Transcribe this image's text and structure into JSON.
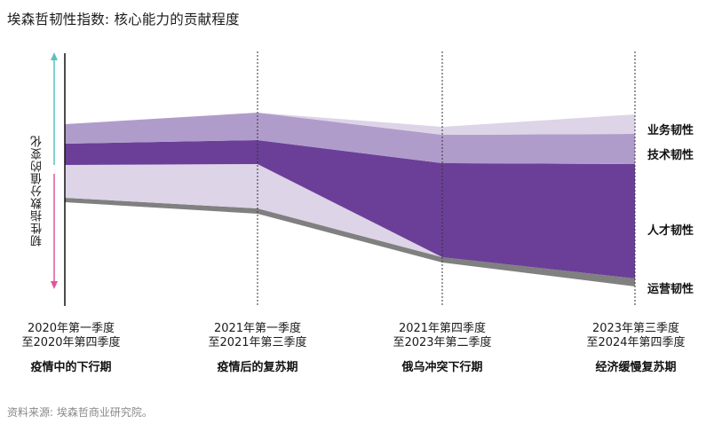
{
  "chart_data": {
    "type": "area",
    "title": "埃森哲韧性指数: 核心能力的贡献程度",
    "ylabel": "韧性指数分值的变化",
    "xlabel": "",
    "y_units": "relative index level (arbitrary units, higher = greater)",
    "ylim": [
      0,
      285
    ],
    "categories": [
      {
        "range_line1": "2020年第一季度",
        "range_line2": "至2020年第四季度",
        "name": "疫情中的下行期"
      },
      {
        "range_line1": "2021年第一季度",
        "range_line2": "至2021年第三季度",
        "name": "疫情后的复苏期"
      },
      {
        "range_line1": "2021年第四季度",
        "range_line2": "至2023年第二季度",
        "name": "俄乌冲突下行期"
      },
      {
        "range_line1": "2023年第三季度",
        "range_line2": "至2024年第四季度",
        "name": "经济缓慢复苏期"
      }
    ],
    "series": [
      {
        "name": "运营韧性",
        "color": "#808080",
        "bottom": [
          112,
          99,
          44,
          17
        ],
        "top": [
          117,
          105,
          50,
          26
        ]
      },
      {
        "name": "业务韧性",
        "color": "#ddd4e8",
        "bottom": [
          117,
          105,
          50,
          26
        ],
        "top": [
          154,
          155,
          50,
          26
        ],
        "note": "lower segment, shrinks to zero"
      },
      {
        "name": "人才韧性",
        "color": "#6b3f98",
        "bottom": [
          154,
          155,
          50,
          26
        ],
        "top": [
          178,
          182,
          156,
          155
        ]
      },
      {
        "name": "技术韧性",
        "color": "#b09ccb",
        "bottom": [
          178,
          182,
          156,
          155
        ],
        "top": [
          200,
          213,
          188,
          189
        ]
      },
      {
        "name": "业务韧性",
        "color": "#ddd4e8",
        "bottom": [
          200,
          213,
          188,
          189
        ],
        "top": [
          200,
          213,
          197,
          211
        ],
        "note": "upper segment, grows from zero"
      }
    ],
    "legend": [
      "业务韧性",
      "技术韧性",
      "人才韧性",
      "运营韧性"
    ],
    "legend_placement": "right",
    "axis_arrows": {
      "up_color": "#5bc0be",
      "down_color": "#e0569b"
    },
    "grid": false
  },
  "source": "资料来源: 埃森哲商业研究院。"
}
